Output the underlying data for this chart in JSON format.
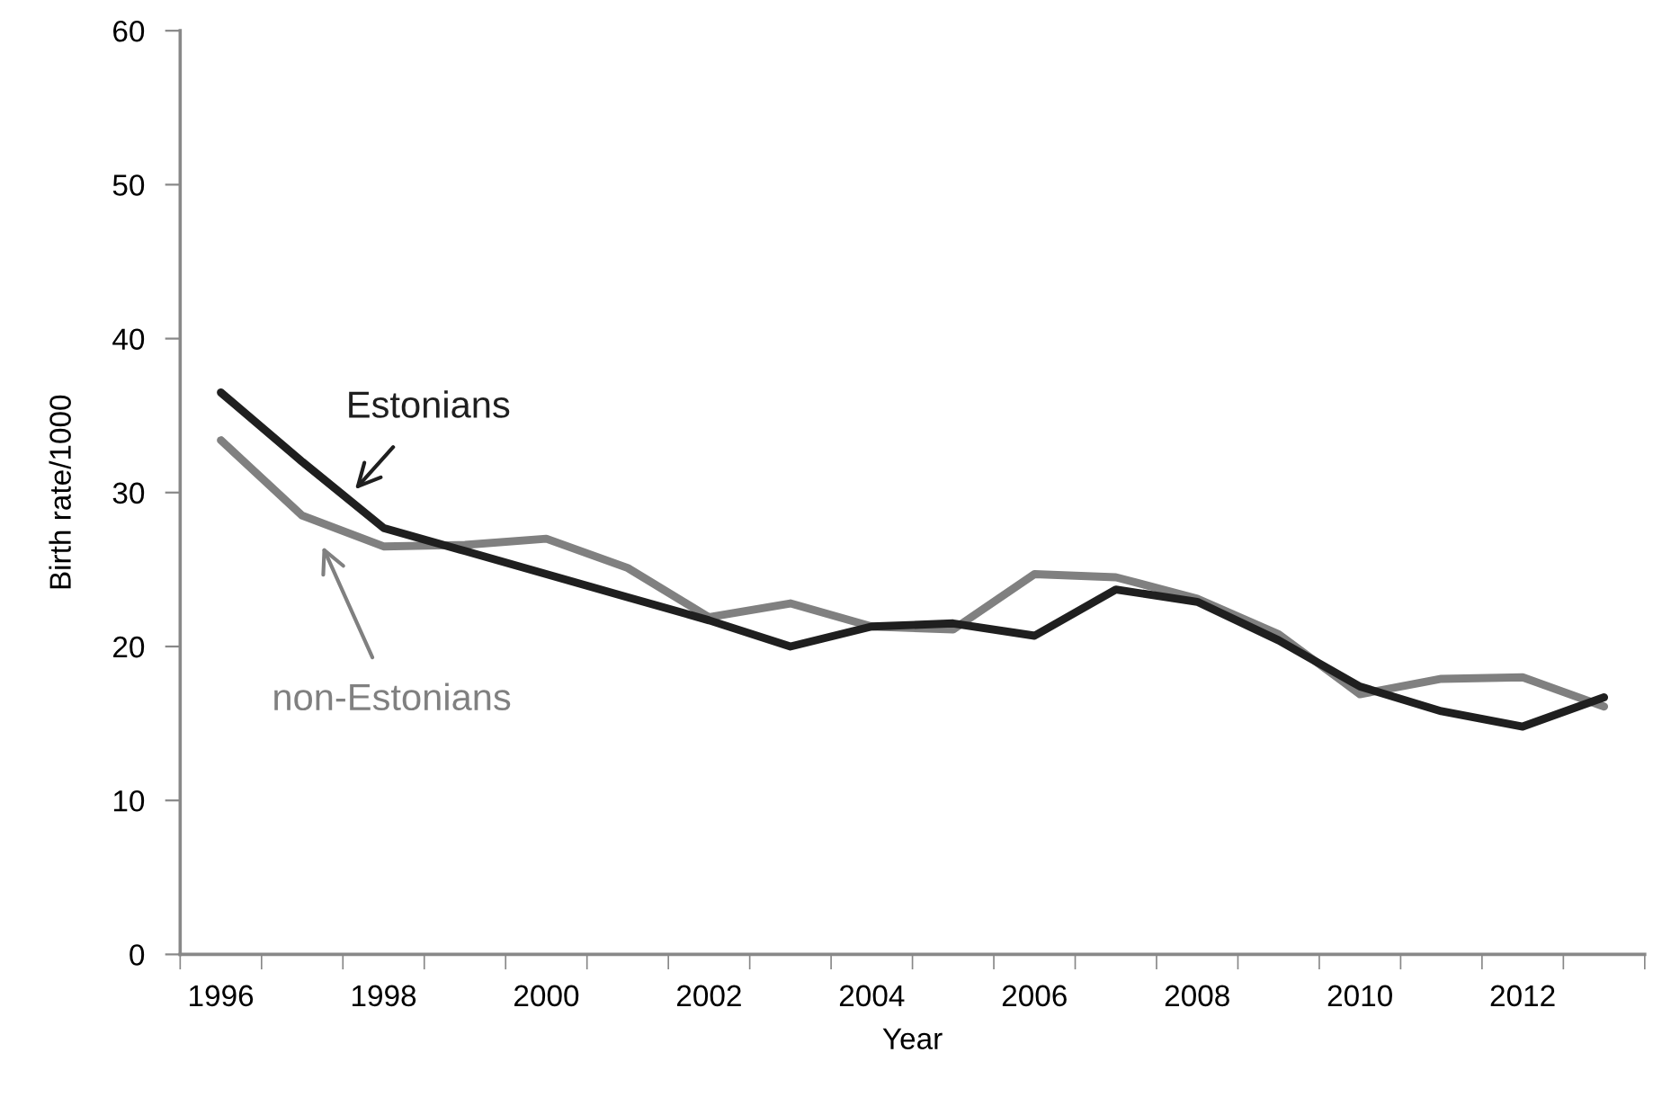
{
  "chart_data": {
    "type": "line",
    "xlabel": "Year",
    "ylabel": "Birth rate/1000",
    "categories": [
      "1996",
      null,
      "1998",
      null,
      "2000",
      null,
      "2002",
      null,
      "2004",
      null,
      "2006",
      null,
      "2008",
      null,
      "2010",
      null,
      "2012",
      null
    ],
    "series": [
      {
        "name": "Estonians",
        "color": "#1f1f1f",
        "values": [
          36.5,
          32.0,
          27.7,
          26.2,
          24.7,
          23.2,
          21.7,
          20.0,
          21.3,
          21.5,
          20.7,
          23.7,
          22.9,
          20.4,
          17.4,
          15.8,
          14.8,
          16.7
        ]
      },
      {
        "name": "non-Estonians",
        "color": "#808080",
        "values": [
          33.4,
          28.5,
          26.5,
          26.6,
          27.0,
          25.1,
          21.9,
          22.8,
          21.3,
          21.1,
          24.7,
          24.5,
          23.1,
          20.8,
          16.9,
          17.9,
          18.0,
          16.1
        ]
      }
    ],
    "ylim": [
      0,
      60
    ],
    "yticks": [
      0,
      10,
      20,
      30,
      40,
      50,
      60
    ],
    "grid": false,
    "legend": false,
    "marker": "none",
    "line_style": "solid"
  }
}
